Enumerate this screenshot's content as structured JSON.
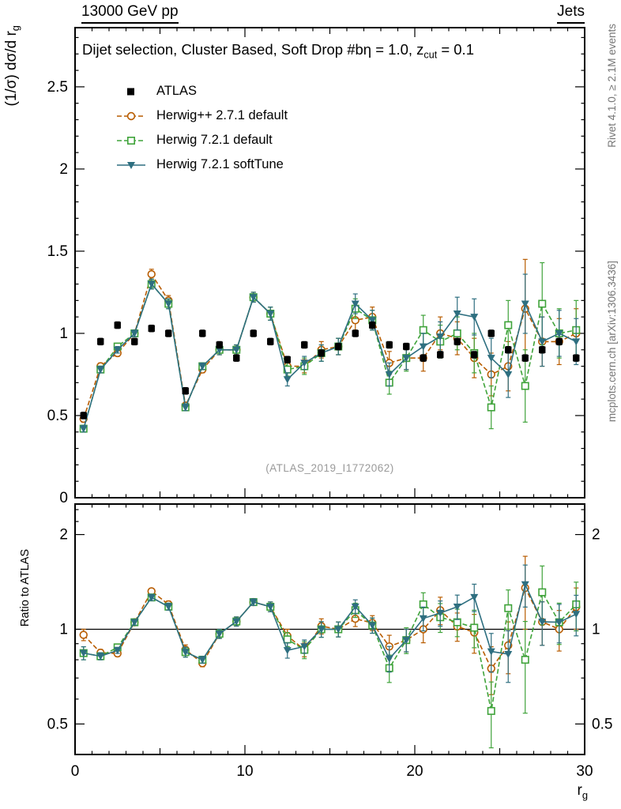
{
  "header": {
    "left": "13000 GeV pp",
    "right": "Jets"
  },
  "titles": {
    "panel_prefix": "Dijet selection, Cluster Based, Soft Drop #bη = 1.0, z",
    "panel_sub": "cut",
    "panel_suffix": " = 0.1",
    "watermark": "(ATLAS_2019_I1772062)"
  },
  "axes": {
    "main_y_prefix": "(1/σ) dσ/d r",
    "main_y_sub": "g",
    "ratio_y": "Ratio to ATLAS",
    "x_prefix": "r",
    "x_sub": "g"
  },
  "side": {
    "right_top": "Rivet 4.1.0, ≥ 2.1M events",
    "right_bottom": "mcplots.cern.ch [arXiv:1306.3436]"
  },
  "chart_data": {
    "type": "line",
    "title": "Dijet selection, Cluster Based, Soft Drop #bη = 1.0, z_cut = 0.1",
    "xlabel": "r_g",
    "ylabel_main": "(1/σ) dσ/d r_g",
    "ylabel_ratio": "Ratio to ATLAS",
    "xlim": [
      0,
      30
    ],
    "main_ylim": [
      0,
      2.86
    ],
    "ratio_ylim": [
      0.4,
      2.5
    ],
    "ratio_scale": "log",
    "xticks": [
      0,
      10,
      20,
      30
    ],
    "main_yticks": [
      0,
      0.5,
      1,
      1.5,
      2,
      2.5
    ],
    "ratio_yticks": [
      0.5,
      1,
      2
    ],
    "ratio_minor_ticks": [
      0.6,
      0.7,
      0.8,
      0.9,
      2.2,
      2.4
    ],
    "x": [
      0.5,
      1.5,
      2.5,
      3.5,
      4.5,
      5.5,
      6.5,
      7.5,
      8.5,
      9.5,
      10.5,
      11.5,
      12.5,
      13.5,
      14.5,
      15.5,
      16.5,
      17.5,
      18.5,
      19.5,
      20.5,
      21.5,
      22.5,
      23.5,
      24.5,
      25.5,
      26.5,
      27.5,
      28.5,
      29.5
    ],
    "reference": {
      "label": "ATLAS",
      "color": "#000000",
      "marker": "square-filled",
      "values": [
        0.5,
        0.95,
        1.05,
        0.95,
        1.03,
        1.0,
        0.65,
        1.0,
        0.93,
        0.85,
        1.0,
        0.95,
        0.84,
        0.93,
        0.88,
        0.92,
        1.0,
        1.05,
        0.93,
        0.92,
        0.85,
        0.87,
        0.95,
        0.87,
        1.0,
        0.9,
        0.85,
        0.9,
        0.95,
        0.85
      ],
      "errs": [
        0.02,
        0.02,
        0.02,
        0.02,
        0.02,
        0.02,
        0.02,
        0.02,
        0.02,
        0.02,
        0.02,
        0.02,
        0.02,
        0.02,
        0.02,
        0.02,
        0.02,
        0.02,
        0.02,
        0.02,
        0.02,
        0.02,
        0.02,
        0.02,
        0.02,
        0.02,
        0.02,
        0.02,
        0.02,
        0.02
      ]
    },
    "series": [
      {
        "label": "Herwig++ 2.7.1 default",
        "color": "#b85c00",
        "line": "dashed",
        "marker": "circle-open",
        "values": [
          0.48,
          0.8,
          0.88,
          1.0,
          1.36,
          1.2,
          0.56,
          0.78,
          0.9,
          0.9,
          1.22,
          1.12,
          0.8,
          0.8,
          0.9,
          0.92,
          1.08,
          1.1,
          0.82,
          0.85,
          0.85,
          1.0,
          0.97,
          0.85,
          0.75,
          0.8,
          1.15,
          0.95,
          0.95,
          1.0
        ],
        "errs": [
          0.02,
          0.02,
          0.02,
          0.02,
          0.03,
          0.03,
          0.02,
          0.02,
          0.03,
          0.03,
          0.03,
          0.04,
          0.04,
          0.04,
          0.05,
          0.05,
          0.06,
          0.06,
          0.07,
          0.07,
          0.08,
          0.1,
          0.1,
          0.12,
          0.13,
          0.15,
          0.3,
          0.15,
          0.14,
          0.15
        ]
      },
      {
        "label": "Herwig 7.2.1 default",
        "color": "#3fa33a",
        "line": "dashed",
        "marker": "square-open",
        "values": [
          0.42,
          0.78,
          0.92,
          1.0,
          1.3,
          1.18,
          0.55,
          0.8,
          0.9,
          0.9,
          1.22,
          1.12,
          0.78,
          0.8,
          0.88,
          0.92,
          1.15,
          1.08,
          0.7,
          0.85,
          1.02,
          0.95,
          1.0,
          0.88,
          0.55,
          1.05,
          0.68,
          1.18,
          1.0,
          1.02
        ],
        "errs": [
          0.02,
          0.02,
          0.02,
          0.02,
          0.03,
          0.03,
          0.02,
          0.02,
          0.03,
          0.03,
          0.03,
          0.04,
          0.04,
          0.05,
          0.05,
          0.05,
          0.06,
          0.06,
          0.07,
          0.08,
          0.09,
          0.1,
          0.1,
          0.12,
          0.13,
          0.15,
          0.22,
          0.25,
          0.15,
          0.18
        ]
      },
      {
        "label": "Herwig 7.2.1 softTune",
        "color": "#2e6f80",
        "line": "solid",
        "marker": "triangle-down",
        "values": [
          0.42,
          0.78,
          0.9,
          1.0,
          1.3,
          1.18,
          0.55,
          0.8,
          0.9,
          0.9,
          1.22,
          1.12,
          0.72,
          0.82,
          0.88,
          0.92,
          1.18,
          1.08,
          0.75,
          0.85,
          0.92,
          0.98,
          1.12,
          1.1,
          0.85,
          0.75,
          1.18,
          0.95,
          1.0,
          0.95
        ],
        "errs": [
          0.02,
          0.02,
          0.02,
          0.02,
          0.03,
          0.03,
          0.02,
          0.02,
          0.03,
          0.03,
          0.03,
          0.04,
          0.04,
          0.04,
          0.05,
          0.05,
          0.06,
          0.06,
          0.07,
          0.07,
          0.08,
          0.09,
          0.1,
          0.11,
          0.12,
          0.14,
          0.18,
          0.15,
          0.14,
          0.14
        ]
      }
    ]
  }
}
